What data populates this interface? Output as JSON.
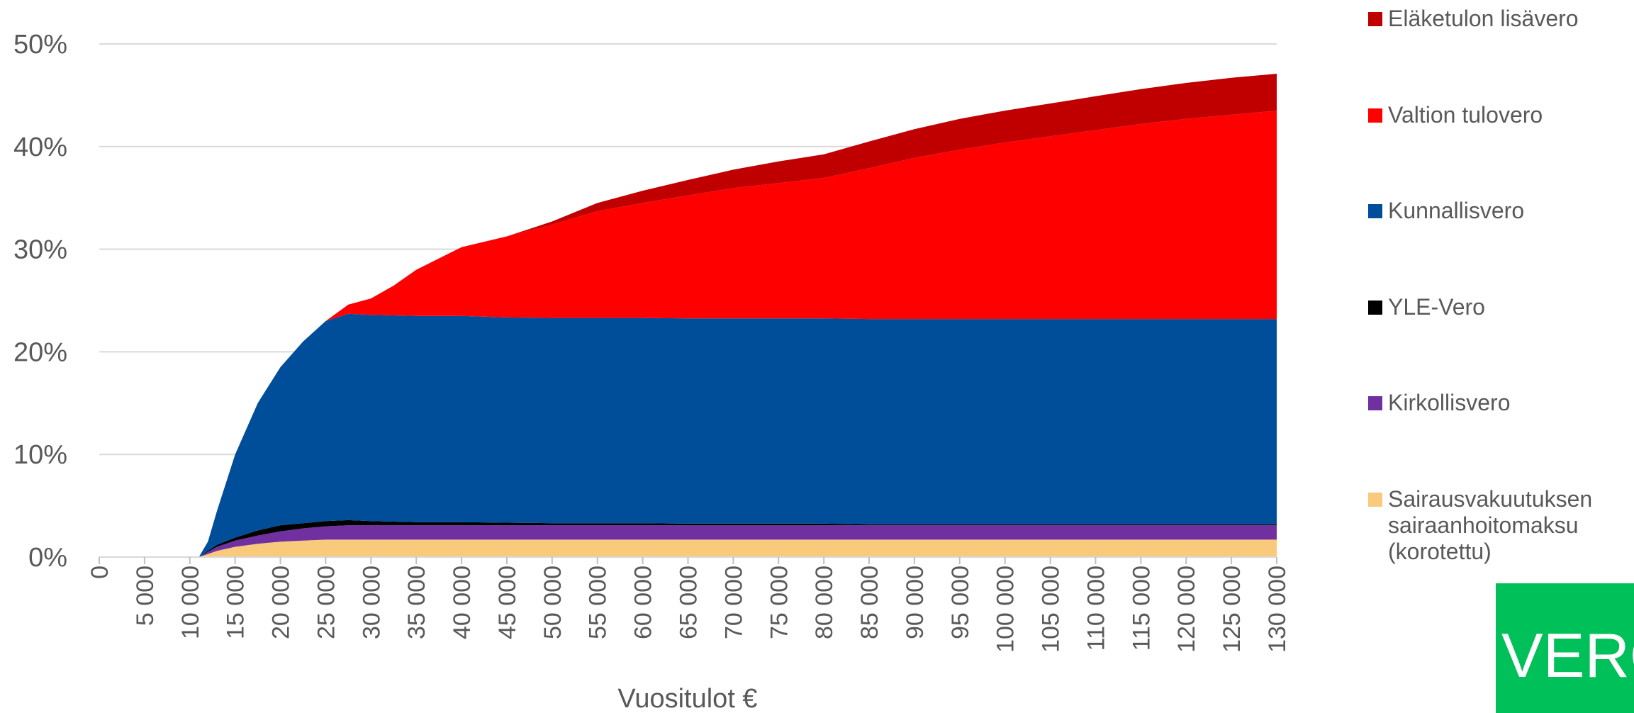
{
  "chart_data": {
    "type": "stacked-area",
    "x_label": "Vuositulot €",
    "logo": "VERO",
    "x": [
      0,
      5000,
      10000,
      11000,
      12000,
      13000,
      15000,
      17500,
      20000,
      22500,
      25000,
      27500,
      30000,
      32500,
      35000,
      40000,
      45000,
      50000,
      55000,
      60000,
      65000,
      70000,
      75000,
      80000,
      85000,
      90000,
      95000,
      100000,
      105000,
      110000,
      115000,
      120000,
      125000,
      130000
    ],
    "series": [
      {
        "name": "Sairausvakuutuksen sairaanhoitomaksu (korotettu)",
        "color": "#f9c97c",
        "values": [
          0,
          0,
          0,
          0,
          0.3,
          0.6,
          1.0,
          1.3,
          1.5,
          1.6,
          1.7,
          1.7,
          1.7,
          1.7,
          1.7,
          1.7,
          1.7,
          1.7,
          1.7,
          1.7,
          1.7,
          1.7,
          1.7,
          1.7,
          1.7,
          1.7,
          1.7,
          1.7,
          1.7,
          1.7,
          1.7,
          1.7,
          1.7,
          1.7
        ]
      },
      {
        "name": "Kirkollisvero",
        "color": "#7030a0",
        "values": [
          0,
          0,
          0,
          0,
          0.2,
          0.4,
          0.6,
          0.8,
          1.0,
          1.2,
          1.3,
          1.4,
          1.4,
          1.4,
          1.4,
          1.4,
          1.4,
          1.4,
          1.4,
          1.4,
          1.4,
          1.4,
          1.4,
          1.4,
          1.4,
          1.4,
          1.4,
          1.4,
          1.4,
          1.4,
          1.4,
          1.4,
          1.4,
          1.4
        ]
      },
      {
        "name": "YLE-Vero",
        "color": "#000000",
        "values": [
          0,
          0,
          0,
          0,
          0.1,
          0.2,
          0.3,
          0.5,
          0.6,
          0.5,
          0.5,
          0.5,
          0.4,
          0.35,
          0.3,
          0.3,
          0.25,
          0.2,
          0.2,
          0.2,
          0.15,
          0.15,
          0.15,
          0.15,
          0.1,
          0.1,
          0.1,
          0.1,
          0.1,
          0.1,
          0.1,
          0.1,
          0.1,
          0.1
        ]
      },
      {
        "name": "Kunnallisvero",
        "color": "#004e9a",
        "values": [
          0,
          0,
          0,
          0,
          0.9,
          3.3,
          8.1,
          12.4,
          15.4,
          17.7,
          19.5,
          20.1,
          20.1,
          20.1,
          20.1,
          20.1,
          20.0,
          20.0,
          20.0,
          20.0,
          20.0,
          20.0,
          20.0,
          20.0,
          20.0,
          20.0,
          20.0,
          20.0,
          20.0,
          20.0,
          20.0,
          20.0,
          20.0,
          20.0
        ]
      },
      {
        "name": "Valtion tulovero",
        "color": "#ff0000",
        "values": [
          0,
          0,
          0,
          0,
          0,
          0,
          0,
          0,
          0,
          0,
          0,
          0.9,
          1.6,
          2.9,
          4.5,
          6.7,
          7.9,
          9.1,
          10.4,
          11.2,
          12.0,
          12.7,
          13.2,
          13.7,
          14.7,
          15.7,
          16.5,
          17.2,
          17.8,
          18.4,
          19.0,
          19.5,
          19.9,
          20.3
        ]
      },
      {
        "name": "Eläketulon lisävero",
        "color": "#c00000",
        "values": [
          0,
          0,
          0,
          0,
          0,
          0,
          0,
          0,
          0,
          0,
          0,
          0,
          0,
          0,
          0,
          0,
          0,
          0.3,
          0.8,
          1.2,
          1.5,
          1.8,
          2.1,
          2.3,
          2.6,
          2.8,
          3.0,
          3.1,
          3.2,
          3.3,
          3.4,
          3.5,
          3.6,
          3.6
        ]
      }
    ],
    "xlim": [
      0,
      130000
    ],
    "xticks": [
      {
        "value": 0,
        "label": "0"
      },
      {
        "value": 5000,
        "label": "5 000"
      },
      {
        "value": 10000,
        "label": "10 000"
      },
      {
        "value": 15000,
        "label": "15 000"
      },
      {
        "value": 20000,
        "label": "20 000"
      },
      {
        "value": 25000,
        "label": "25 000"
      },
      {
        "value": 30000,
        "label": "30 000"
      },
      {
        "value": 35000,
        "label": "35 000"
      },
      {
        "value": 40000,
        "label": "40 000"
      },
      {
        "value": 45000,
        "label": "45 000"
      },
      {
        "value": 50000,
        "label": "50 000"
      },
      {
        "value": 55000,
        "label": "55 000"
      },
      {
        "value": 60000,
        "label": "60 000"
      },
      {
        "value": 65000,
        "label": "65 000"
      },
      {
        "value": 70000,
        "label": "70 000"
      },
      {
        "value": 75000,
        "label": "75 000"
      },
      {
        "value": 80000,
        "label": "80 000"
      },
      {
        "value": 85000,
        "label": "85 000"
      },
      {
        "value": 90000,
        "label": "90 000"
      },
      {
        "value": 95000,
        "label": "95 000"
      },
      {
        "value": 100000,
        "label": "100 000"
      },
      {
        "value": 105000,
        "label": "105 000"
      },
      {
        "value": 110000,
        "label": "110 000"
      },
      {
        "value": 115000,
        "label": "115 000"
      },
      {
        "value": 120000,
        "label": "120 000"
      },
      {
        "value": 125000,
        "label": "125 000"
      },
      {
        "value": 130000,
        "label": "130 000"
      }
    ],
    "ylim": [
      0,
      50
    ],
    "yticks": [
      {
        "value": 0,
        "label": "0%"
      },
      {
        "value": 10,
        "label": "10%"
      },
      {
        "value": 20,
        "label": "20%"
      },
      {
        "value": 30,
        "label": "30%"
      },
      {
        "value": 40,
        "label": "40%"
      },
      {
        "value": 50,
        "label": "50%"
      }
    ],
    "grid": true,
    "legend": "right"
  }
}
